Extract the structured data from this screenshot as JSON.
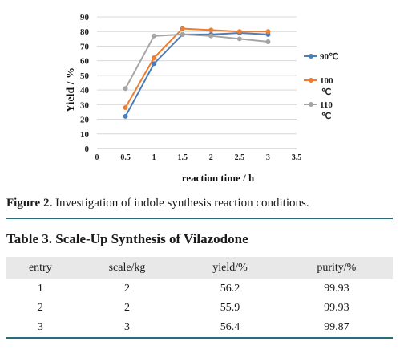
{
  "figure": {
    "label": "Figure 2.",
    "caption": " Investigation of indole synthesis reaction conditions."
  },
  "chart_data": {
    "type": "line",
    "xlabel": "reaction time / h",
    "ylabel": "Yield / %",
    "x_ticks": [
      "0",
      "0.5",
      "1",
      "1.5",
      "2",
      "2.5",
      "3",
      "3.5"
    ],
    "y_ticks": [
      "0",
      "10",
      "20",
      "30",
      "40",
      "50",
      "60",
      "70",
      "80",
      "90"
    ],
    "xlim": [
      0,
      3.5
    ],
    "ylim": [
      0,
      90
    ],
    "grid": true,
    "legend_position": "right",
    "x": [
      0.5,
      1,
      1.5,
      2,
      2.5,
      3
    ],
    "series": [
      {
        "name": "90℃",
        "color": "#4a7ebb",
        "values": [
          22,
          58,
          78,
          78,
          79,
          78
        ]
      },
      {
        "name": "100 ℃",
        "color": "#ed7d31",
        "values": [
          28,
          62,
          82,
          81,
          80,
          80
        ]
      },
      {
        "name": "110 ℃",
        "color": "#a5a5a5",
        "values": [
          41,
          77,
          78,
          77,
          75,
          73
        ]
      }
    ]
  },
  "table": {
    "title": "Table 3. Scale-Up Synthesis of Vilazodone",
    "headers": [
      "entry",
      "scale/kg",
      "yield/%",
      "purity/%"
    ],
    "rows": [
      [
        "1",
        "2",
        "56.2",
        "99.93"
      ],
      [
        "2",
        "2",
        "55.9",
        "99.93"
      ],
      [
        "3",
        "3",
        "56.4",
        "99.87"
      ]
    ]
  }
}
